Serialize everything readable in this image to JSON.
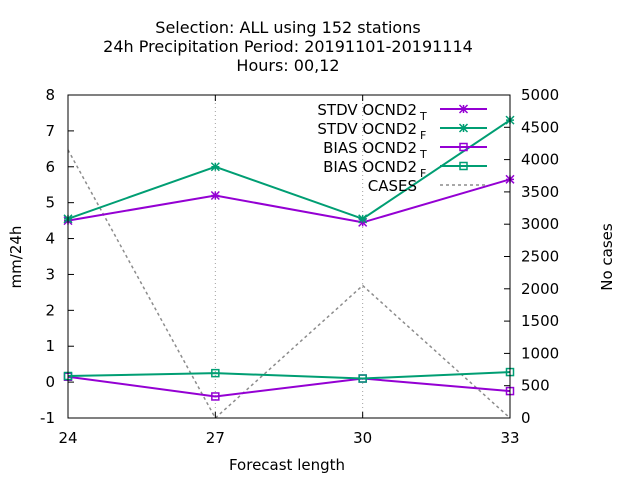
{
  "chart_data": {
    "type": "line",
    "title_lines": [
      "Selection: ALL using   152 stations",
      "24h Precipitation   Period: 20191101-20191114",
      "Hours:  00,12"
    ],
    "xlabel": "Forecast length",
    "ylabel": "mm/24h",
    "y2label": "No cases",
    "x": [
      24,
      27,
      30,
      33
    ],
    "xlim": [
      24,
      33
    ],
    "ylim": [
      -1,
      8
    ],
    "y2lim": [
      0,
      5000
    ],
    "x_ticks": [
      "24",
      "27",
      "30",
      "33"
    ],
    "y_ticks": [
      "-1",
      "0",
      "1",
      "2",
      "3",
      "4",
      "5",
      "6",
      "7",
      "8"
    ],
    "y2_ticks": [
      "0",
      "500",
      "1000",
      "1500",
      "2000",
      "2500",
      "3000",
      "3500",
      "4000",
      "4500",
      "5000"
    ],
    "grid": "vertical dotted lines at x ticks",
    "legend_position": "top-right",
    "series": [
      {
        "name": "STDV OCND2",
        "sub": "T",
        "values": [
          4.5,
          5.2,
          4.45,
          5.65
        ],
        "color": "#9400d3",
        "marker": "star",
        "axis": "y1",
        "dash": false
      },
      {
        "name": "STDV OCND2",
        "sub": "F",
        "values": [
          4.55,
          6.0,
          4.55,
          7.3
        ],
        "color": "#009e73",
        "marker": "star",
        "axis": "y1",
        "dash": false
      },
      {
        "name": "BIAS OCND2",
        "sub": "T",
        "values": [
          0.15,
          -0.4,
          0.1,
          -0.25
        ],
        "color": "#9400d3",
        "marker": "square",
        "axis": "y1",
        "dash": false
      },
      {
        "name": "BIAS OCND2",
        "sub": "F",
        "values": [
          0.17,
          0.25,
          0.1,
          0.28
        ],
        "color": "#009e73",
        "marker": "square",
        "axis": "y1",
        "dash": false
      },
      {
        "name": "CASES",
        "sub": "",
        "values": [
          4150,
          0,
          2050,
          0
        ],
        "color": "#8c8c8c",
        "marker": "none",
        "axis": "y2",
        "dash": true
      }
    ]
  }
}
